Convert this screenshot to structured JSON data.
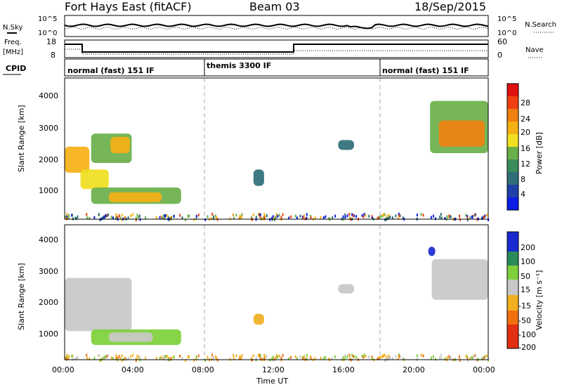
{
  "header": {
    "station": "Fort Hays East (fitACF)",
    "beam": "Beam 03",
    "date": "18/Sep/2015"
  },
  "noise_panel": {
    "left_label": "N.Sky",
    "right_label": "N.Search",
    "left_ticks": [
      "10^5",
      "10^0"
    ],
    "right_ticks": [
      "10^5",
      "10^0"
    ]
  },
  "freq_panel": {
    "left_label_line1": "Freq.",
    "left_label_line2": "[MHz]",
    "right_label": "Nave",
    "left_ticks": [
      "18",
      "8"
    ],
    "right_ticks": [
      "60",
      "0"
    ]
  },
  "cpid_panel": {
    "label": "CPID",
    "modes": [
      {
        "start_hour": 0,
        "end_hour": 8,
        "name": "normal (fast) 151 IF"
      },
      {
        "start_hour": 8,
        "end_hour": 18.25,
        "name": "themis 3300 IF"
      },
      {
        "start_hour": 18.25,
        "end_hour": 24,
        "name": "normal (fast) 151 IF"
      }
    ]
  },
  "power_panel": {
    "ylabel": "Slant Range [km]",
    "yticks": [
      "4000",
      "3000",
      "2000",
      "1000"
    ],
    "colorbar_label": "Power [dB]",
    "colorbar_ticks": [
      "28",
      "24",
      "20",
      "16",
      "12",
      "8",
      "4"
    ],
    "colors": [
      "#0a1ee6",
      "#1f3ea8",
      "#2f6e78",
      "#3a8c5a",
      "#6ab04a",
      "#f0e020",
      "#f5b015",
      "#f08010",
      "#f04010",
      "#e01010"
    ]
  },
  "velocity_panel": {
    "ylabel": "Slant Range [km]",
    "yticks": [
      "4000",
      "3000",
      "2000",
      "1000"
    ],
    "colorbar_label": "Velocity [m s⁻¹]",
    "colorbar_ticks": [
      "200",
      "100",
      "50",
      "15",
      "-15",
      "-50",
      "-100",
      "-200"
    ],
    "colors": [
      "#1a2ad0",
      "#2a8a5a",
      "#7ed03a",
      "#c8c8c8",
      "#f0b020",
      "#f07010",
      "#e03010"
    ]
  },
  "xaxis": {
    "label": "Time UT",
    "ticks": [
      "00:00",
      "04:00",
      "08:00",
      "12:00",
      "16:00",
      "20:00",
      "00:00"
    ]
  },
  "chart_data": {
    "type": "heatmap",
    "x_range_hours": [
      0,
      24
    ],
    "y_range_km": [
      180,
      4500
    ],
    "power_regions": [
      {
        "t0": 0.0,
        "t1": 1.4,
        "r0": 1600,
        "r1": 2400,
        "power_dB": 20
      },
      {
        "t0": 1.5,
        "t1": 3.8,
        "r0": 1900,
        "r1": 2800,
        "power_dB": 14
      },
      {
        "t0": 2.6,
        "t1": 3.7,
        "r0": 2200,
        "r1": 2700,
        "power_dB": 20
      },
      {
        "t0": 0.9,
        "t1": 2.5,
        "r0": 1100,
        "r1": 1700,
        "power_dB": 18
      },
      {
        "t0": 1.5,
        "t1": 6.6,
        "r0": 650,
        "r1": 1150,
        "power_dB": 14
      },
      {
        "t0": 2.5,
        "t1": 5.5,
        "r0": 700,
        "r1": 1000,
        "power_dB": 22
      },
      {
        "t0": 10.7,
        "t1": 11.3,
        "r0": 1200,
        "r1": 1700,
        "power_dB": 8
      },
      {
        "t0": 15.5,
        "t1": 16.4,
        "r0": 2300,
        "r1": 2600,
        "power_dB": 8
      },
      {
        "t0": 20.7,
        "t1": 24.0,
        "r0": 2200,
        "r1": 3800,
        "power_dB": 16
      },
      {
        "t0": 21.2,
        "t1": 23.8,
        "r0": 2400,
        "r1": 3200,
        "power_dB": 24
      }
    ],
    "velocity_regions": [
      {
        "t0": 0.0,
        "t1": 3.8,
        "r0": 1100,
        "r1": 2800,
        "velocity": 0
      },
      {
        "t0": 1.5,
        "t1": 6.6,
        "r0": 650,
        "r1": 1150,
        "velocity": 30
      },
      {
        "t0": 2.5,
        "t1": 5.0,
        "r0": 750,
        "r1": 1050,
        "velocity": 0
      },
      {
        "t0": 10.7,
        "t1": 11.3,
        "r0": 1300,
        "r1": 1650,
        "velocity": -40
      },
      {
        "t0": 15.5,
        "t1": 16.4,
        "r0": 2300,
        "r1": 2600,
        "velocity": 0
      },
      {
        "t0": 20.6,
        "t1": 21.0,
        "r0": 3500,
        "r1": 3800,
        "velocity": 150
      },
      {
        "t0": 20.8,
        "t1": 24.0,
        "r0": 2100,
        "r1": 3400,
        "velocity": 0
      }
    ]
  }
}
